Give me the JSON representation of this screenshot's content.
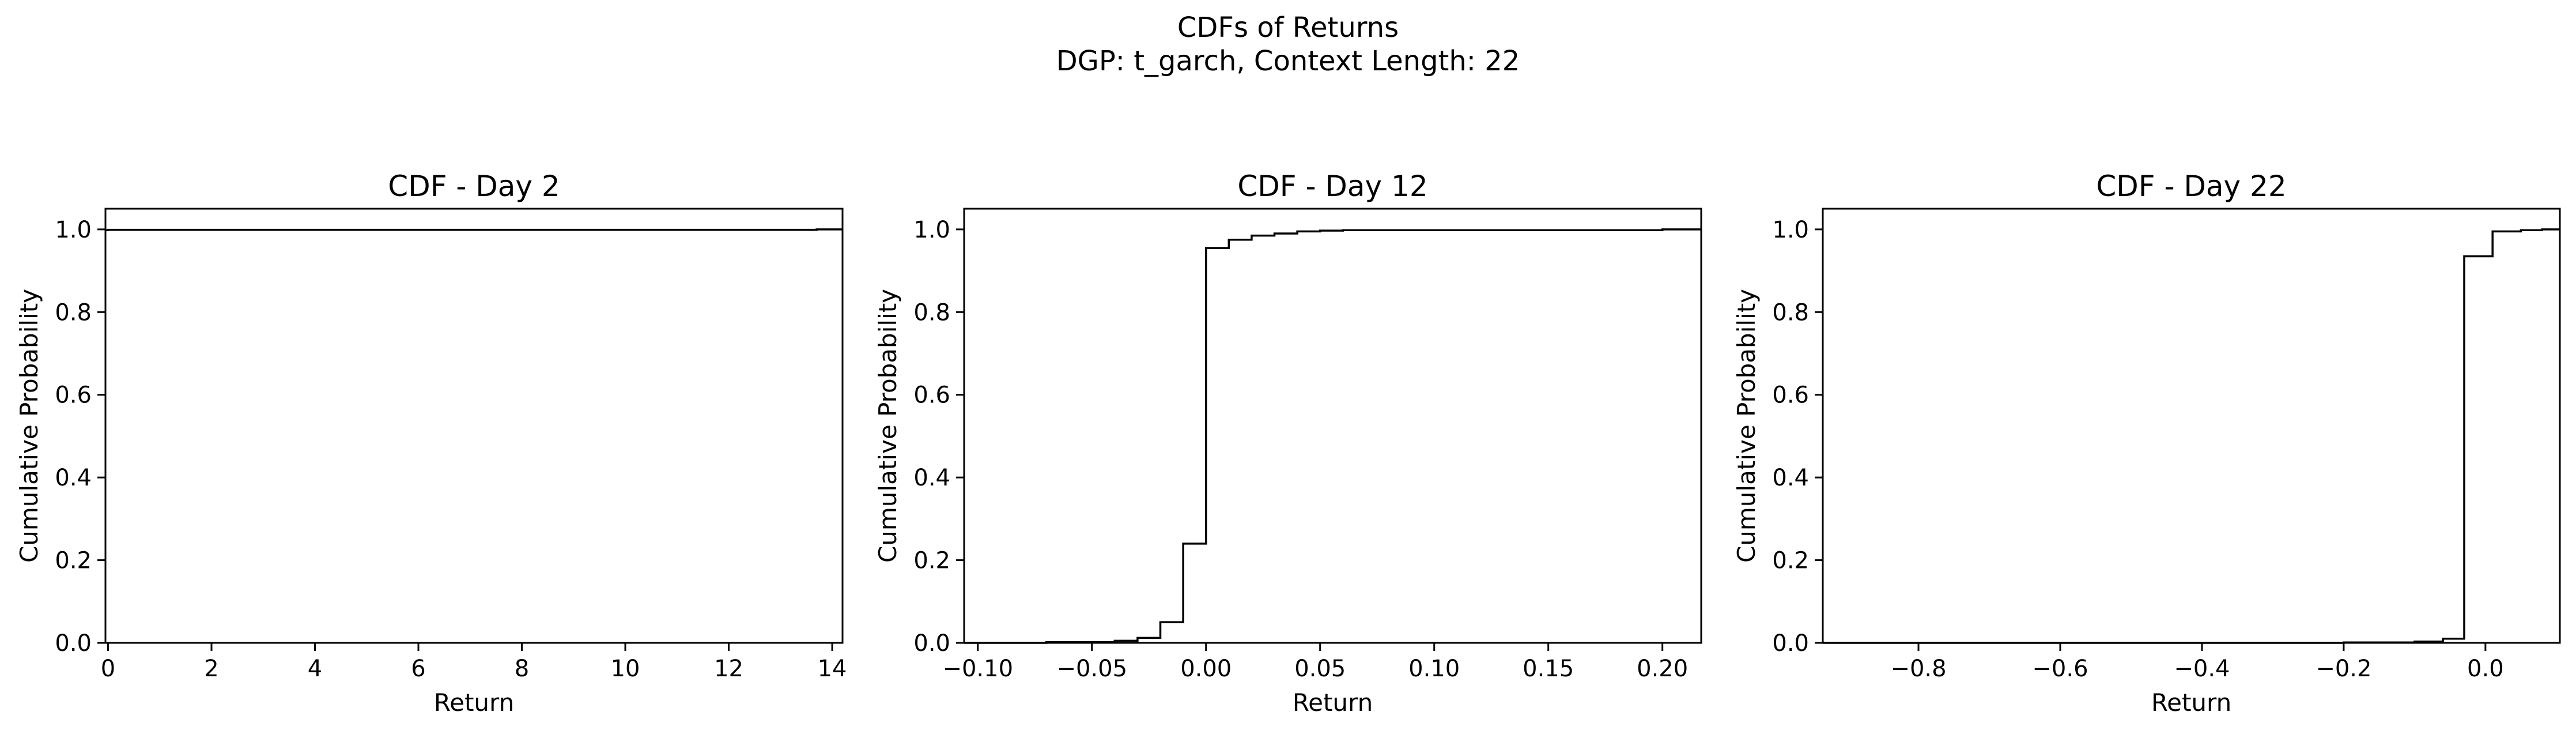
{
  "figure": {
    "title_line1": "CDFs of Returns",
    "title_line2": "DGP: t_garch, Context Length: 22"
  },
  "chart_data": [
    {
      "type": "line",
      "step": true,
      "title": "CDF - Day 2",
      "xlabel": "Return",
      "ylabel": "Cumulative Probability",
      "xlim": [
        -0.05,
        14.2
      ],
      "ylim": [
        0,
        1.05
      ],
      "xticks": [
        0,
        2,
        4,
        6,
        8,
        10,
        12,
        14
      ],
      "xtick_labels": [
        "0",
        "2",
        "4",
        "6",
        "8",
        "10",
        "12",
        "14"
      ],
      "yticks": [
        0,
        0.2,
        0.4,
        0.6,
        0.8,
        1.0
      ],
      "ytick_labels": [
        "0.0",
        "0.2",
        "0.4",
        "0.6",
        "0.8",
        "1.0"
      ],
      "grid": false,
      "line_color": "#000000",
      "x": [
        -0.05,
        0.0,
        13.7,
        14.2
      ],
      "y": [
        0.998,
        0.999,
        1.0,
        1.0
      ]
    },
    {
      "type": "line",
      "step": true,
      "title": "CDF - Day 12",
      "xlabel": "Return",
      "ylabel": "Cumulative Probability",
      "xlim": [
        -0.106,
        0.217
      ],
      "ylim": [
        0,
        1.05
      ],
      "xticks": [
        -0.1,
        -0.05,
        0.0,
        0.05,
        0.1,
        0.15,
        0.2
      ],
      "xtick_labels": [
        "−0.10",
        "−0.05",
        "0.00",
        "0.05",
        "0.10",
        "0.15",
        "0.20"
      ],
      "yticks": [
        0,
        0.2,
        0.4,
        0.6,
        0.8,
        1.0
      ],
      "ytick_labels": [
        "0.0",
        "0.2",
        "0.4",
        "0.6",
        "0.8",
        "1.0"
      ],
      "grid": false,
      "line_color": "#000000",
      "x": [
        -0.106,
        -0.07,
        -0.04,
        -0.03,
        -0.02,
        -0.01,
        0.0,
        0.01,
        0.02,
        0.03,
        0.04,
        0.05,
        0.06,
        0.2,
        0.217
      ],
      "y": [
        0.0,
        0.002,
        0.005,
        0.012,
        0.05,
        0.24,
        0.955,
        0.975,
        0.985,
        0.99,
        0.995,
        0.997,
        0.998,
        1.0,
        1.0
      ]
    },
    {
      "type": "line",
      "step": true,
      "title": "CDF - Day 22",
      "xlabel": "Return",
      "ylabel": "Cumulative Probability",
      "xlim": [
        -0.935,
        0.105
      ],
      "ylim": [
        0,
        1.05
      ],
      "xticks": [
        -0.8,
        -0.6,
        -0.4,
        -0.2,
        0.0
      ],
      "xtick_labels": [
        "−0.8",
        "−0.6",
        "−0.4",
        "−0.2",
        "0.0"
      ],
      "yticks": [
        0,
        0.2,
        0.4,
        0.6,
        0.8,
        1.0
      ],
      "ytick_labels": [
        "0.0",
        "0.2",
        "0.4",
        "0.6",
        "0.8",
        "1.0"
      ],
      "grid": false,
      "line_color": "#000000",
      "x": [
        -0.935,
        -0.2,
        -0.1,
        -0.06,
        -0.03,
        0.01,
        0.05,
        0.08,
        0.105
      ],
      "y": [
        0.0,
        0.001,
        0.003,
        0.01,
        0.935,
        0.995,
        0.998,
        1.0,
        1.0
      ]
    }
  ]
}
